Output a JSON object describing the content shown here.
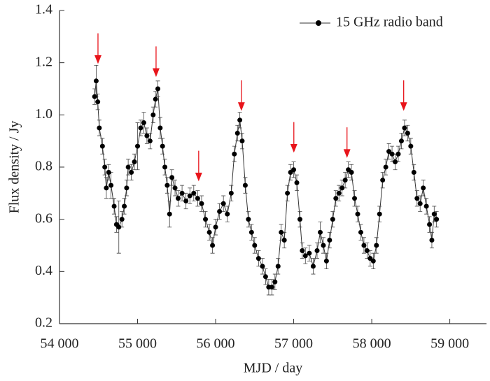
{
  "chart_data": {
    "type": "errorbar-line",
    "xlabel": "MJD / day",
    "ylabel": "Flux density / Jy",
    "xlim": [
      54000,
      59470
    ],
    "ylim": [
      0.2,
      1.4
    ],
    "xticks": [
      {
        "value": 54000,
        "label": "54 000"
      },
      {
        "value": 55000,
        "label": "55 000"
      },
      {
        "value": 56000,
        "label": "56 000"
      },
      {
        "value": 57000,
        "label": "57 000"
      },
      {
        "value": 58000,
        "label": "58 000"
      },
      {
        "value": 59000,
        "label": "59 000"
      }
    ],
    "yticks": [
      0.2,
      0.4,
      0.6,
      0.8,
      {
        "value": 1.0,
        "label": "1.0"
      },
      1.2,
      1.4
    ],
    "legend": "upper right",
    "series": [
      {
        "name": "15 GHz radio band",
        "color": "#000000",
        "x": [
          54450,
          54470,
          54490,
          54510,
          54550,
          54580,
          54600,
          54630,
          54660,
          54700,
          54730,
          54760,
          54800,
          54830,
          54860,
          54880,
          54920,
          54960,
          55000,
          55040,
          55080,
          55120,
          55160,
          55200,
          55230,
          55260,
          55290,
          55320,
          55350,
          55380,
          55410,
          55440,
          55480,
          55520,
          55570,
          55620,
          55670,
          55720,
          55770,
          55820,
          55870,
          55920,
          55960,
          56000,
          56050,
          56100,
          56150,
          56200,
          56240,
          56280,
          56310,
          56340,
          56380,
          56420,
          56460,
          56500,
          56550,
          56600,
          56640,
          56680,
          56720,
          56760,
          56800,
          56840,
          56880,
          56920,
          56960,
          57000,
          57040,
          57080,
          57110,
          57150,
          57200,
          57250,
          57300,
          57340,
          57380,
          57420,
          57460,
          57500,
          57540,
          57580,
          57620,
          57660,
          57700,
          57740,
          57780,
          57820,
          57860,
          57900,
          57940,
          57980,
          58020,
          58060,
          58100,
          58140,
          58180,
          58220,
          58260,
          58300,
          58340,
          58380,
          58420,
          58460,
          58500,
          58540,
          58580,
          58620,
          58660,
          58700,
          58740,
          58770,
          58800,
          58830
        ],
        "values": [
          1.07,
          1.13,
          1.05,
          0.95,
          0.88,
          0.8,
          0.72,
          0.78,
          0.73,
          0.65,
          0.58,
          0.57,
          0.6,
          0.65,
          0.72,
          0.8,
          0.78,
          0.82,
          0.88,
          0.95,
          0.97,
          0.92,
          0.9,
          1.0,
          1.06,
          1.1,
          0.95,
          0.88,
          0.8,
          0.73,
          0.62,
          0.76,
          0.72,
          0.68,
          0.7,
          0.67,
          0.69,
          0.7,
          0.68,
          0.66,
          0.6,
          0.55,
          0.5,
          0.57,
          0.63,
          0.66,
          0.62,
          0.7,
          0.85,
          0.93,
          0.98,
          0.9,
          0.73,
          0.6,
          0.55,
          0.5,
          0.45,
          0.42,
          0.38,
          0.34,
          0.34,
          0.36,
          0.42,
          0.55,
          0.52,
          0.7,
          0.78,
          0.79,
          0.74,
          0.6,
          0.48,
          0.46,
          0.47,
          0.42,
          0.48,
          0.55,
          0.5,
          0.44,
          0.52,
          0.6,
          0.68,
          0.7,
          0.72,
          0.75,
          0.79,
          0.78,
          0.68,
          0.62,
          0.55,
          0.5,
          0.48,
          0.45,
          0.44,
          0.5,
          0.62,
          0.75,
          0.8,
          0.86,
          0.85,
          0.82,
          0.85,
          0.9,
          0.95,
          0.93,
          0.88,
          0.78,
          0.68,
          0.66,
          0.72,
          0.65,
          0.58,
          0.52,
          0.62,
          0.6
        ],
        "errors": [
          0.03,
          0.06,
          0.03,
          0.03,
          0.03,
          0.03,
          0.04,
          0.03,
          0.05,
          0.03,
          0.03,
          0.1,
          0.03,
          0.03,
          0.03,
          0.03,
          0.03,
          0.03,
          0.09,
          0.03,
          0.04,
          0.03,
          0.03,
          0.03,
          0.03,
          0.03,
          0.04,
          0.03,
          0.03,
          0.03,
          0.05,
          0.03,
          0.03,
          0.03,
          0.03,
          0.03,
          0.03,
          0.03,
          0.03,
          0.03,
          0.03,
          0.03,
          0.03,
          0.03,
          0.03,
          0.03,
          0.03,
          0.03,
          0.03,
          0.03,
          0.03,
          0.03,
          0.03,
          0.03,
          0.03,
          0.03,
          0.03,
          0.03,
          0.03,
          0.03,
          0.03,
          0.03,
          0.03,
          0.03,
          0.03,
          0.03,
          0.03,
          0.03,
          0.03,
          0.03,
          0.03,
          0.03,
          0.03,
          0.03,
          0.03,
          0.04,
          0.03,
          0.03,
          0.03,
          0.03,
          0.03,
          0.03,
          0.03,
          0.03,
          0.03,
          0.03,
          0.03,
          0.03,
          0.03,
          0.03,
          0.03,
          0.03,
          0.03,
          0.03,
          0.03,
          0.03,
          0.03,
          0.03,
          0.03,
          0.03,
          0.03,
          0.03,
          0.03,
          0.03,
          0.03,
          0.03,
          0.03,
          0.03,
          0.03,
          0.03,
          0.03,
          0.03,
          0.03,
          0.03
        ]
      }
    ],
    "arrows": {
      "color": "#e8141b",
      "x": [
        54493,
        55237,
        55783,
        56330,
        57002,
        57683,
        58409
      ],
      "y": [
        1.2,
        1.15,
        0.75,
        1.02,
        0.86,
        0.84,
        1.02
      ]
    }
  }
}
